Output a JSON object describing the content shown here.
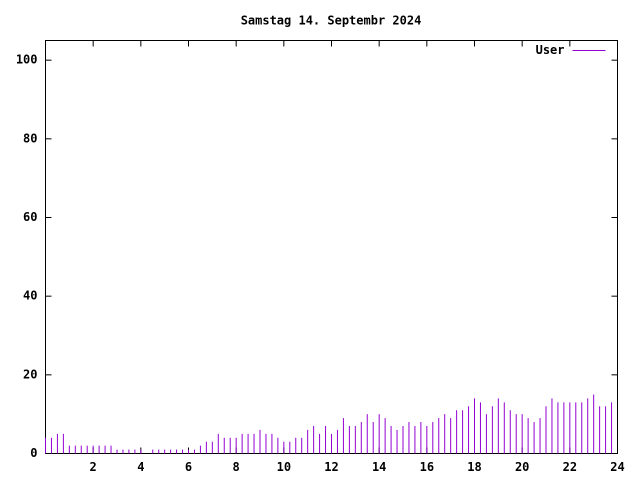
{
  "chart_data": {
    "type": "impulses",
    "title": "Samstag 14. Septembr 2024",
    "x": [
      0,
      0.25,
      0.5,
      0.75,
      1,
      1.25,
      1.5,
      1.75,
      2,
      2.25,
      2.5,
      2.75,
      3,
      3.25,
      3.5,
      3.75,
      4,
      4.25,
      4.5,
      4.75,
      5,
      5.25,
      5.5,
      5.75,
      6,
      6.25,
      6.5,
      6.75,
      7,
      7.25,
      7.5,
      7.75,
      8,
      8.25,
      8.5,
      8.75,
      9,
      9.25,
      9.5,
      9.75,
      10,
      10.25,
      10.5,
      10.75,
      11,
      11.25,
      11.5,
      11.75,
      12,
      12.25,
      12.5,
      12.75,
      13,
      13.25,
      13.5,
      13.75,
      14,
      14.25,
      14.5,
      14.75,
      15,
      15.25,
      15.5,
      15.75,
      16,
      16.25,
      16.5,
      16.75,
      17,
      17.25,
      17.5,
      17.75,
      18,
      18.25,
      18.5,
      18.75,
      19,
      19.25,
      19.5,
      19.75,
      20,
      20.25,
      20.5,
      20.75,
      21,
      21.25,
      21.5,
      21.75,
      22,
      22.25,
      22.5,
      22.75,
      23,
      23.25,
      23.5,
      23.75
    ],
    "series": [
      {
        "name": "User",
        "color": "#9400d3",
        "values": [
          4,
          4,
          5,
          5,
          2,
          2,
          2,
          2,
          2,
          2,
          2,
          2,
          1,
          1,
          1,
          1,
          1,
          0,
          1,
          1,
          1,
          1,
          1,
          1,
          1,
          1,
          2,
          3,
          3,
          5,
          4,
          4,
          4,
          5,
          5,
          5,
          6,
          5,
          5,
          4,
          3,
          3,
          4,
          4,
          6,
          7,
          5,
          7,
          5,
          6,
          9,
          7,
          7,
          8,
          10,
          8,
          10,
          9,
          7,
          6,
          7,
          8,
          7,
          8,
          7,
          8,
          9,
          10,
          9,
          11,
          11,
          12,
          14,
          13,
          10,
          12,
          14,
          13,
          11,
          10,
          10,
          9,
          8,
          9,
          12,
          14,
          13,
          13,
          13,
          13,
          13,
          14,
          15,
          12,
          12,
          13
        ]
      }
    ],
    "xlim": [
      0,
      24
    ],
    "xticks": [
      2,
      4,
      6,
      8,
      10,
      12,
      14,
      16,
      18,
      20,
      22,
      24
    ],
    "ylim": [
      0,
      105
    ],
    "yticks": [
      0,
      20,
      40,
      60,
      80,
      100
    ],
    "legend": "top-right"
  }
}
